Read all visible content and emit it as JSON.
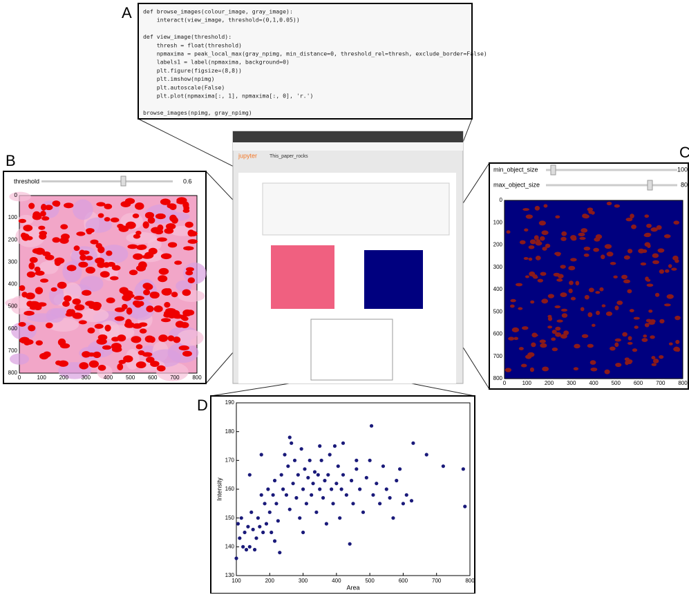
{
  "panel_a": {
    "label": "A",
    "code_blocks": [
      [
        "def browse_images(colour_image, gray_image):",
        "    interact(view_image, threshold=(0,1,0.05))"
      ],
      [
        "def view_image(threshold):",
        "    thresh = float(threshold)",
        "    npmaxima = peak_local_max(gray_npimg, min_distance=0, threshold_rel=thresh, exclude_border=False)",
        "    labels1 = label(npmaxima, background=0)",
        "    plt.figure(figsize=(8,8))",
        "    plt.imshow(npimg)",
        "    plt.autoscale(False)",
        "    plt.plot(npmaxima[:, 1], npmaxima[:, 0], 'r.')"
      ],
      [
        "browse_images(npimg, gray_npimg)"
      ]
    ]
  },
  "panel_b": {
    "label": "B",
    "slider_label": "threshold",
    "slider_value": 0.6,
    "xticks": [
      0,
      100,
      200,
      300,
      400,
      500,
      600,
      700,
      800
    ],
    "yticks": [
      0,
      100,
      200,
      300,
      400,
      500,
      600,
      700,
      800
    ]
  },
  "panel_c": {
    "label": "C",
    "sliders": [
      {
        "label": "min_object_size",
        "value": 100
      },
      {
        "label": "max_object_size",
        "value": 80
      }
    ],
    "xticks": [
      0,
      100,
      200,
      300,
      400,
      500,
      600,
      700,
      800
    ],
    "yticks": [
      0,
      100,
      200,
      300,
      400,
      500,
      600,
      700,
      800
    ]
  },
  "screenshot": {
    "logo": "jupyter",
    "notebook_name": "This_paper_rocks"
  },
  "chart_data": {
    "type": "scatter",
    "label": "D",
    "x_label": "Area",
    "y_label": "Intensity",
    "color": "#1a1a7a",
    "xlim": [
      100,
      800
    ],
    "ylim": [
      130,
      190
    ],
    "xticks": [
      100,
      200,
      300,
      400,
      500,
      600,
      700,
      800
    ],
    "yticks": [
      130,
      140,
      150,
      160,
      170,
      180,
      190
    ],
    "x": [
      105,
      110,
      115,
      120,
      125,
      130,
      135,
      140,
      145,
      150,
      155,
      160,
      165,
      170,
      175,
      180,
      185,
      190,
      195,
      200,
      205,
      210,
      215,
      220,
      225,
      230,
      235,
      240,
      245,
      250,
      255,
      260,
      265,
      270,
      275,
      280,
      285,
      290,
      295,
      300,
      305,
      310,
      315,
      320,
      325,
      330,
      335,
      340,
      345,
      350,
      355,
      360,
      365,
      370,
      375,
      380,
      385,
      390,
      395,
      400,
      405,
      410,
      415,
      420,
      430,
      440,
      445,
      450,
      460,
      470,
      480,
      490,
      500,
      505,
      510,
      520,
      530,
      540,
      550,
      560,
      570,
      580,
      590,
      600,
      610,
      625,
      630,
      670,
      720,
      780,
      785,
      100,
      140,
      175,
      215,
      260,
      300,
      350,
      420,
      460
    ],
    "y": [
      148,
      143,
      150,
      140,
      145,
      139,
      147,
      140,
      152,
      146,
      139,
      143,
      150,
      147,
      158,
      145,
      155,
      148,
      160,
      152,
      145,
      158,
      163,
      155,
      149,
      138,
      165,
      160,
      172,
      158,
      168,
      153,
      176,
      162,
      170,
      157,
      165,
      150,
      174,
      160,
      167,
      155,
      164,
      170,
      158,
      162,
      166,
      152,
      165,
      160,
      170,
      157,
      163,
      148,
      165,
      172,
      160,
      155,
      175,
      162,
      168,
      150,
      160,
      165,
      158,
      141,
      163,
      155,
      167,
      160,
      152,
      164,
      170,
      182,
      158,
      162,
      155,
      168,
      160,
      157,
      150,
      163,
      167,
      155,
      158,
      156,
      176,
      172,
      168,
      167,
      154,
      136,
      165,
      172,
      142,
      178,
      145,
      175,
      176,
      170
    ]
  }
}
